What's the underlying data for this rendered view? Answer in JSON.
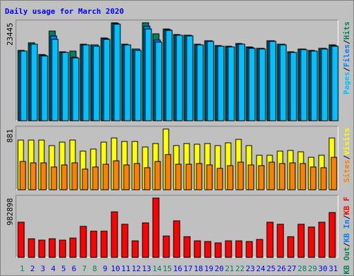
{
  "colors": {
    "background": "#c0c0c0",
    "title": "#0000ff",
    "hits": "#00805c",
    "files": "#0080ff",
    "pages": "#00c0ff",
    "visits": "#ffff00",
    "sites": "#ff8000",
    "kb_in": "#0080ff",
    "kb_out": "#00805c",
    "kb_f": "#ff0000",
    "weekend_label": "#00805c",
    "weekday_label": "#0000ff"
  },
  "chart_data": {
    "type": "bar",
    "title": "Daily usage for March 2020",
    "days": [
      "1",
      "2",
      "3",
      "4",
      "5",
      "6",
      "7",
      "8",
      "9",
      "10",
      "11",
      "12",
      "13",
      "14",
      "15",
      "16",
      "17",
      "18",
      "19",
      "20",
      "21",
      "22",
      "23",
      "24",
      "25",
      "26",
      "27",
      "28",
      "29",
      "30",
      "31"
    ],
    "weekend_days": [
      "1",
      "7",
      "8",
      "14",
      "15",
      "21",
      "22",
      "28",
      "29"
    ],
    "panels": [
      {
        "name": "hits-files-pages",
        "scale_label": "23445",
        "ymax": 23445,
        "legend": [
          "Hits",
          "/",
          "Files",
          "/",
          "Pages"
        ],
        "series": [
          {
            "name": "Hits",
            "values": [
              16800,
              18600,
              15900,
              21500,
              16500,
              16700,
              18300,
              18200,
              19800,
              23500,
              18300,
              17200,
              23400,
              20800,
              22000,
              20600,
              20500,
              18300,
              19200,
              18000,
              17800,
              18500,
              17600,
              17400,
              19200,
              18400,
              16500,
              17200,
              16800,
              17400,
              18100
            ]
          },
          {
            "name": "Files",
            "values": [
              16700,
              18400,
              15700,
              20300,
              16400,
              15200,
              18200,
              18100,
              19600,
              23300,
              18200,
              17100,
              22700,
              19300,
              21800,
              20500,
              20400,
              18200,
              19100,
              17900,
              17700,
              18400,
              17500,
              17300,
              19100,
              18300,
              16400,
              17100,
              16700,
              17300,
              18000
            ]
          },
          {
            "name": "Pages",
            "values": [
              16600,
              18300,
              15600,
              19400,
              16300,
              15100,
              18100,
              17900,
              19500,
              23100,
              18100,
              16900,
              21900,
              18800,
              21700,
              20400,
              20300,
              18100,
              19000,
              17800,
              17600,
              18300,
              17400,
              17200,
              19000,
              18200,
              16300,
              17000,
              16600,
              17200,
              17900
            ]
          }
        ]
      },
      {
        "name": "visits-sites",
        "scale_label": "881",
        "ymax": 881,
        "legend": [
          "Visits",
          "/",
          "Sites"
        ],
        "series": [
          {
            "name": "Visits",
            "values": [
              718,
              718,
              718,
              645,
              690,
              725,
              560,
              590,
              690,
              755,
              705,
              705,
              620,
              675,
              881,
              640,
              670,
              665,
              670,
              640,
              680,
              727,
              640,
              500,
              500,
              565,
              570,
              555,
              470,
              500,
              755
            ]
          },
          {
            "name": "Sites",
            "values": [
              410,
              395,
              395,
              330,
              360,
              395,
              300,
              330,
              375,
              420,
              360,
              385,
              320,
              410,
              510,
              370,
              370,
              380,
              360,
              310,
              350,
              400,
              360,
              355,
              400,
              380,
              390,
              385,
              330,
              320,
              475
            ]
          }
        ]
      },
      {
        "name": "kbytes",
        "scale_label": "982898",
        "ymax": 982898,
        "legend": [
          "KB F",
          "/",
          "KB In",
          "/",
          "KB Out"
        ],
        "series": [
          {
            "name": "KB F",
            "values": [
              580000,
              310000,
              290000,
              310000,
              290000,
              320000,
              520000,
              430000,
              430000,
              760000,
              550000,
              280000,
              570000,
              982898,
              350000,
              610000,
              340000,
              270000,
              260000,
              240000,
              280000,
              280000,
              260000,
              300000,
              580000,
              550000,
              340000,
              550000,
              500000,
              580000,
              740000
            ]
          }
        ]
      }
    ]
  }
}
